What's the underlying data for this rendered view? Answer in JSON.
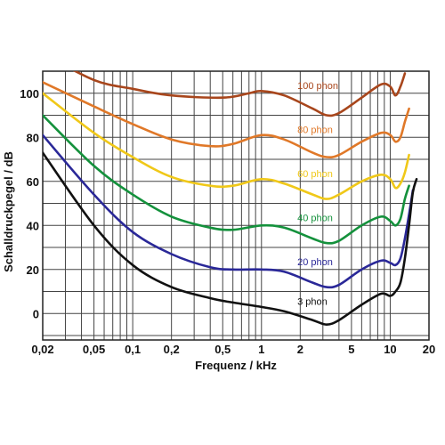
{
  "chart_data": {
    "type": "line",
    "title": "",
    "xlabel": "Frequenz  /  kHz",
    "ylabel": "Schalldruckpegel  /  dB",
    "x_scale": "log",
    "xlim": [
      0.02,
      20
    ],
    "ylim": [
      -12,
      110
    ],
    "grid": true,
    "x_ticks": [
      {
        "value": 0.02,
        "label": "0,02"
      },
      {
        "value": 0.05,
        "label": "0,05"
      },
      {
        "value": 0.1,
        "label": "0,1"
      },
      {
        "value": 0.2,
        "label": "0,2"
      },
      {
        "value": 0.5,
        "label": "0,5"
      },
      {
        "value": 1,
        "label": "1"
      },
      {
        "value": 2,
        "label": "2"
      },
      {
        "value": 5,
        "label": "5"
      },
      {
        "value": 10,
        "label": "10"
      },
      {
        "value": 20,
        "label": "20"
      }
    ],
    "y_ticks": [
      {
        "value": 0,
        "label": "0"
      },
      {
        "value": 20,
        "label": "20"
      },
      {
        "value": 40,
        "label": "40"
      },
      {
        "value": 60,
        "label": "60"
      },
      {
        "value": 80,
        "label": "80"
      },
      {
        "value": 100,
        "label": "100"
      }
    ],
    "series": [
      {
        "name": "100 phon",
        "color": "#a8461c",
        "label_at": [
          1.9,
          102
        ],
        "points": [
          [
            0.02,
            118
          ],
          [
            0.05,
            106
          ],
          [
            0.1,
            102
          ],
          [
            0.2,
            99
          ],
          [
            0.5,
            98
          ],
          [
            0.8,
            100
          ],
          [
            1,
            101
          ],
          [
            1.5,
            99
          ],
          [
            2.5,
            93
          ],
          [
            3.2,
            90
          ],
          [
            4,
            91
          ],
          [
            6,
            98
          ],
          [
            8.5,
            104
          ],
          [
            10,
            103
          ],
          [
            11,
            99
          ],
          [
            12,
            103
          ],
          [
            13,
            109
          ]
        ]
      },
      {
        "name": "80 phon",
        "color": "#e07828",
        "label_at": [
          1.9,
          82
        ],
        "points": [
          [
            0.02,
            105
          ],
          [
            0.05,
            94
          ],
          [
            0.1,
            86
          ],
          [
            0.2,
            79
          ],
          [
            0.4,
            76
          ],
          [
            0.6,
            77
          ],
          [
            1,
            81
          ],
          [
            1.5,
            79
          ],
          [
            2.5,
            73
          ],
          [
            3.2,
            71
          ],
          [
            4,
            72
          ],
          [
            6,
            78
          ],
          [
            8.5,
            82
          ],
          [
            10,
            81
          ],
          [
            11,
            78
          ],
          [
            12,
            80
          ],
          [
            13,
            87
          ],
          [
            14,
            93
          ]
        ]
      },
      {
        "name": "60 phon",
        "color": "#f0c818",
        "label_at": [
          1.9,
          62
        ],
        "points": [
          [
            0.02,
            100
          ],
          [
            0.05,
            82
          ],
          [
            0.1,
            71
          ],
          [
            0.2,
            62
          ],
          [
            0.4,
            58
          ],
          [
            0.6,
            58
          ],
          [
            1,
            61
          ],
          [
            1.5,
            59
          ],
          [
            2.5,
            54
          ],
          [
            3.2,
            52
          ],
          [
            4,
            54
          ],
          [
            6,
            60
          ],
          [
            8.5,
            63
          ],
          [
            10,
            61
          ],
          [
            11,
            57
          ],
          [
            12,
            59
          ],
          [
            13,
            64
          ],
          [
            14,
            72
          ]
        ]
      },
      {
        "name": "40 phon",
        "color": "#14913c",
        "label_at": [
          1.9,
          42
        ],
        "points": [
          [
            0.02,
            90
          ],
          [
            0.05,
            67
          ],
          [
            0.1,
            54
          ],
          [
            0.2,
            44
          ],
          [
            0.4,
            39
          ],
          [
            0.6,
            38
          ],
          [
            1,
            40
          ],
          [
            1.5,
            39
          ],
          [
            2.5,
            34
          ],
          [
            3.2,
            32
          ],
          [
            4,
            33
          ],
          [
            6,
            40
          ],
          [
            8.5,
            44
          ],
          [
            10,
            42
          ],
          [
            11,
            40
          ],
          [
            12,
            43
          ],
          [
            13,
            52
          ],
          [
            14,
            58
          ]
        ]
      },
      {
        "name": "20 phon",
        "color": "#2a2898",
        "label_at": [
          1.9,
          22
        ],
        "points": [
          [
            0.02,
            81
          ],
          [
            0.05,
            54
          ],
          [
            0.1,
            37
          ],
          [
            0.2,
            27
          ],
          [
            0.4,
            21
          ],
          [
            0.6,
            20
          ],
          [
            1,
            20
          ],
          [
            1.5,
            19
          ],
          [
            2.5,
            14
          ],
          [
            3.2,
            12
          ],
          [
            4,
            13
          ],
          [
            6,
            20
          ],
          [
            8.5,
            24
          ],
          [
            10,
            23
          ],
          [
            11,
            22
          ],
          [
            12,
            25
          ],
          [
            13,
            34
          ],
          [
            14,
            45
          ],
          [
            15,
            56
          ]
        ]
      },
      {
        "name": "3 phon",
        "color": "#111111",
        "label_at": [
          1.9,
          4
        ],
        "points": [
          [
            0.02,
            73
          ],
          [
            0.05,
            40
          ],
          [
            0.1,
            22
          ],
          [
            0.2,
            12
          ],
          [
            0.4,
            7
          ],
          [
            0.6,
            5
          ],
          [
            1,
            3
          ],
          [
            1.5,
            1
          ],
          [
            2.5,
            -3
          ],
          [
            3.2,
            -5
          ],
          [
            4,
            -3
          ],
          [
            6,
            4
          ],
          [
            8.5,
            9
          ],
          [
            10,
            8
          ],
          [
            11,
            10
          ],
          [
            12,
            14
          ],
          [
            13,
            25
          ],
          [
            14,
            40
          ],
          [
            15,
            55
          ],
          [
            16,
            61
          ]
        ]
      }
    ]
  }
}
